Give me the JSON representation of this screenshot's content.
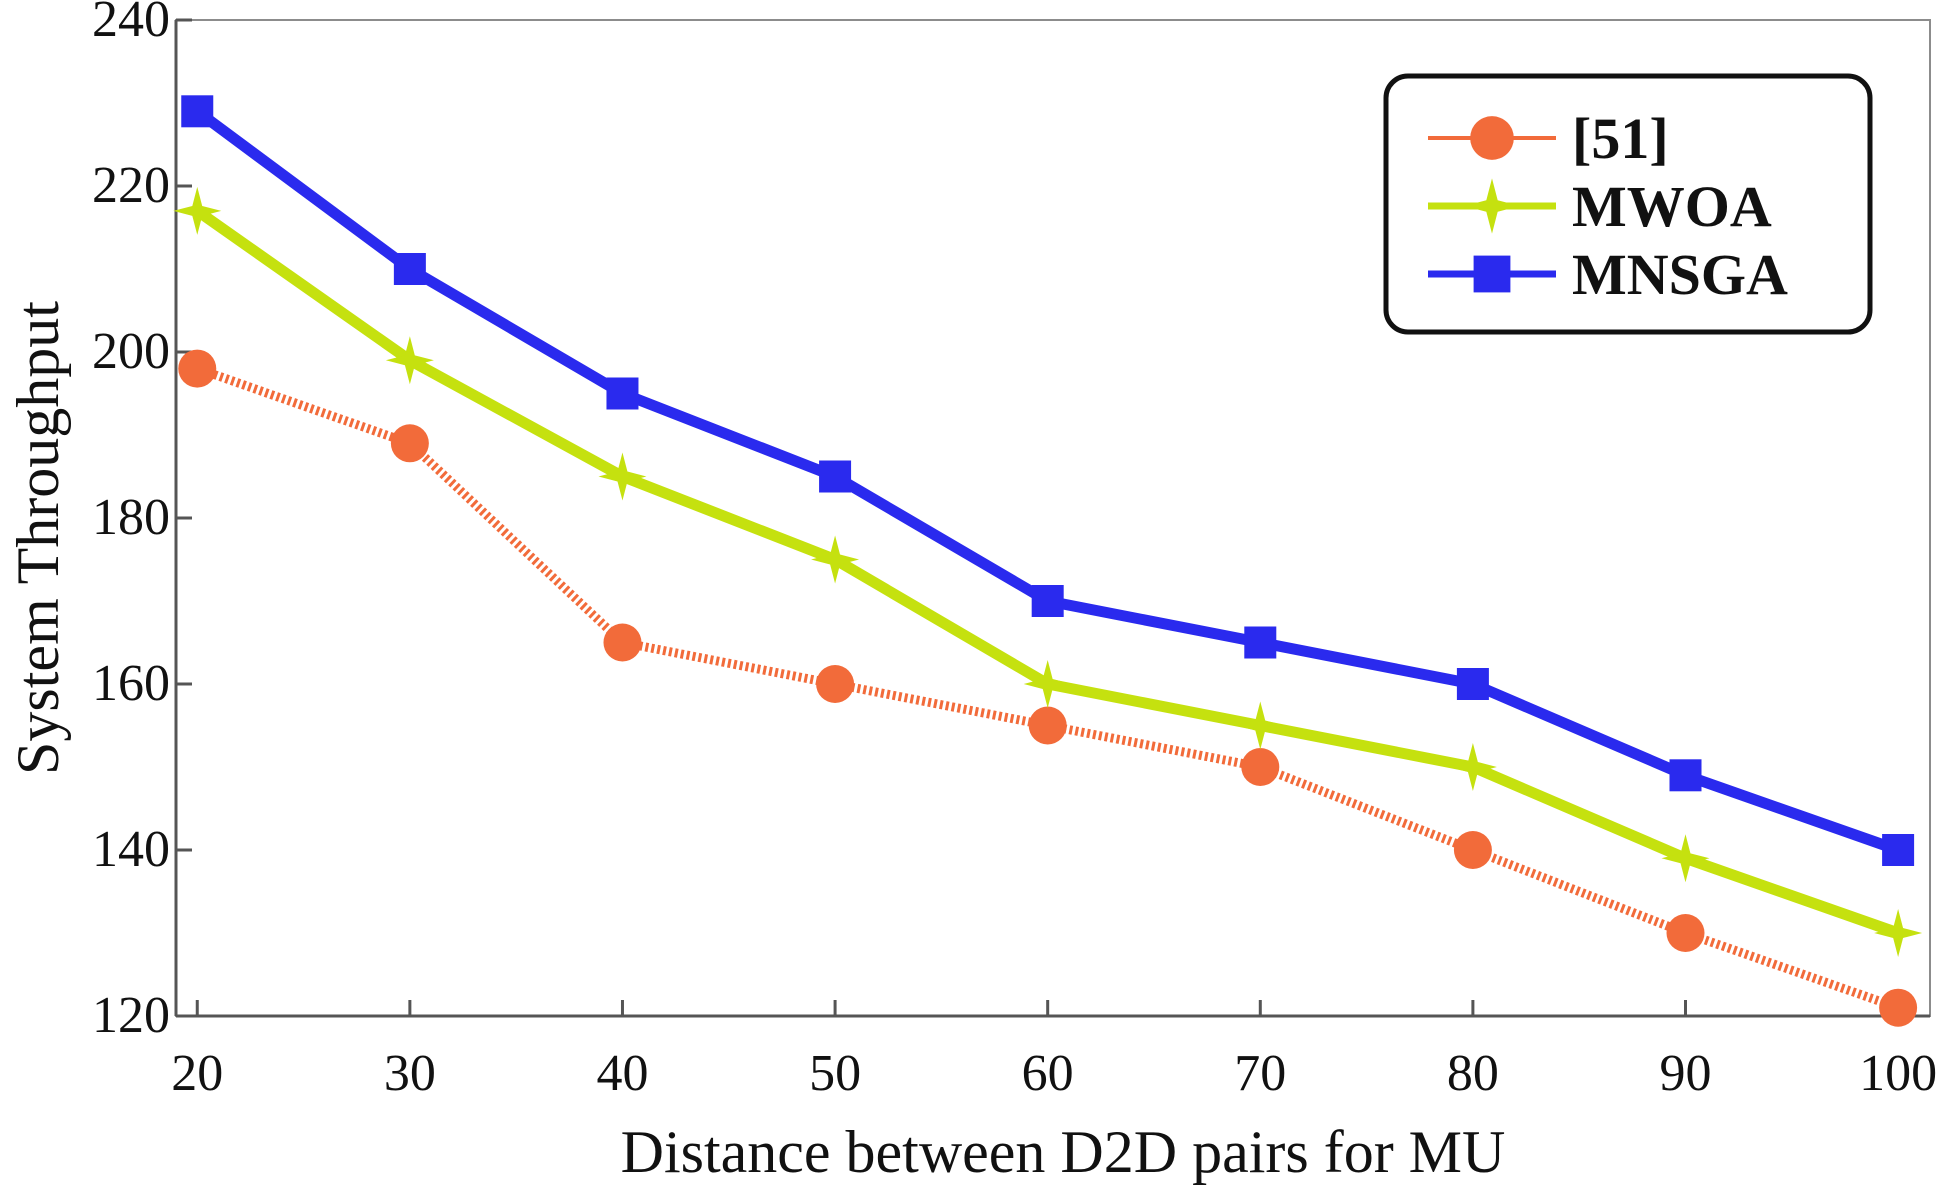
{
  "chart_data": {
    "type": "line",
    "title": "",
    "xlabel": "Distance between D2D pairs for MU",
    "ylabel": "System Throughput",
    "x": [
      20,
      30,
      40,
      50,
      60,
      70,
      80,
      90,
      100
    ],
    "x_tick_labels": [
      "20",
      "30",
      "40",
      "50",
      "60",
      "70",
      "80",
      "90",
      "100"
    ],
    "y_tick_labels": [
      "120",
      "140",
      "160",
      "180",
      "200",
      "220",
      "240"
    ],
    "y_ticks": [
      120,
      140,
      160,
      180,
      200,
      220,
      240
    ],
    "xlim": [
      19,
      101.5
    ],
    "ylim": [
      120,
      240
    ],
    "grid": false,
    "legend_position": "top-right",
    "series": [
      {
        "name": "[51]",
        "color": "#f26b3a",
        "marker": "circle",
        "line_style": "dotted",
        "values": [
          198,
          189,
          165,
          160,
          155,
          150,
          140,
          130,
          121
        ]
      },
      {
        "name": "MWOA",
        "color": "#c5e10f",
        "marker": "star",
        "line_style": "solid",
        "values": [
          217,
          199,
          185,
          175,
          160,
          155,
          150,
          139,
          130
        ]
      },
      {
        "name": "MNSGA",
        "color": "#2a2aee",
        "marker": "square",
        "line_style": "solid",
        "values": [
          229,
          210,
          195,
          185,
          170,
          165,
          160,
          149,
          140
        ]
      }
    ]
  }
}
